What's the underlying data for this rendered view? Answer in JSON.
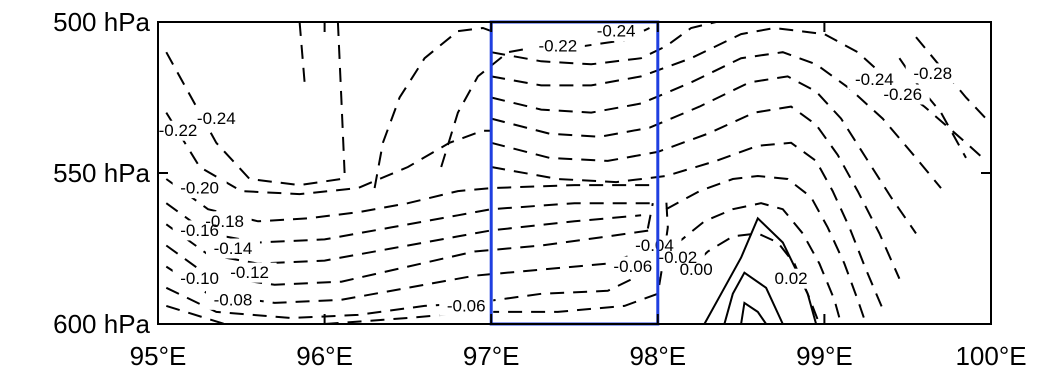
{
  "chart_data": {
    "type": "contour",
    "title": "",
    "xlabel": "",
    "ylabel": "",
    "xlim": [
      95,
      100
    ],
    "ylim": [
      600,
      500
    ],
    "x_ticks": [
      95,
      96,
      97,
      98,
      99,
      100
    ],
    "x_tick_labels": [
      "95°E",
      "96°E",
      "97°E",
      "98°E",
      "99°E",
      "100°E"
    ],
    "y_ticks": [
      500,
      550,
      600
    ],
    "y_tick_labels": [
      "500 hPa",
      "550 hPa",
      "600 hPa"
    ],
    "negative_line_style": "dashed",
    "positive_line_style": "solid",
    "highlight_box": {
      "x": [
        97,
        98
      ],
      "y": [
        500,
        600
      ],
      "color": "#1f3fe0"
    },
    "contour_labels": [
      {
        "text": "-0.24",
        "x": 97.75,
        "y": 503
      },
      {
        "text": "-0.22",
        "x": 97.4,
        "y": 508
      },
      {
        "text": "-0.24",
        "x": 95.35,
        "y": 532
      },
      {
        "text": "-0.22",
        "x": 95.12,
        "y": 536
      },
      {
        "text": "-0.20",
        "x": 95.25,
        "y": 555
      },
      {
        "text": "-0.18",
        "x": 95.4,
        "y": 566
      },
      {
        "text": "-0.16",
        "x": 95.25,
        "y": 569
      },
      {
        "text": "-0.14",
        "x": 95.45,
        "y": 575
      },
      {
        "text": "-0.12",
        "x": 95.55,
        "y": 583
      },
      {
        "text": "-0.10",
        "x": 95.25,
        "y": 585
      },
      {
        "text": "-0.08",
        "x": 95.45,
        "y": 592
      },
      {
        "text": "-0.06",
        "x": 96.85,
        "y": 594
      },
      {
        "text": "-0.06",
        "x": 97.85,
        "y": 581
      },
      {
        "text": "-0.04",
        "x": 97.98,
        "y": 574
      },
      {
        "text": "-0.02",
        "x": 98.12,
        "y": 578
      },
      {
        "text": "0.00",
        "x": 98.23,
        "y": 582
      },
      {
        "text": "0.02",
        "x": 98.8,
        "y": 585
      },
      {
        "text": "-0.24",
        "x": 99.3,
        "y": 519
      },
      {
        "text": "-0.26",
        "x": 99.47,
        "y": 524
      },
      {
        "text": "-0.28",
        "x": 99.65,
        "y": 517
      }
    ],
    "contour_lines": [
      {
        "style": "dashed",
        "points": [
          [
            95.05,
            510
          ],
          [
            95.2,
            525
          ],
          [
            95.35,
            540
          ],
          [
            95.55,
            552
          ],
          [
            95.85,
            554
          ],
          [
            96.1,
            552
          ]
        ]
      },
      {
        "style": "dashed",
        "points": [
          [
            95.05,
            530
          ],
          [
            95.25,
            548
          ],
          [
            95.5,
            556
          ],
          [
            95.85,
            557
          ],
          [
            96.2,
            555
          ],
          [
            96.5,
            548
          ],
          [
            96.75,
            540
          ],
          [
            96.95,
            536
          ],
          [
            97.0,
            536
          ]
        ]
      },
      {
        "style": "dashed",
        "points": [
          [
            95.05,
            552
          ],
          [
            95.3,
            562
          ],
          [
            95.6,
            566
          ],
          [
            95.9,
            565
          ],
          [
            96.2,
            563
          ],
          [
            96.5,
            560
          ],
          [
            96.8,
            556
          ],
          [
            97.0,
            555
          ],
          [
            97.5,
            554
          ],
          [
            98.0,
            554
          ]
        ]
      },
      {
        "style": "dashed",
        "points": [
          [
            95.05,
            560
          ],
          [
            95.3,
            570
          ],
          [
            95.6,
            573
          ],
          [
            96.0,
            572
          ],
          [
            96.4,
            568
          ],
          [
            96.8,
            564
          ],
          [
            97.0,
            562
          ],
          [
            97.5,
            560
          ],
          [
            98.0,
            560
          ]
        ]
      },
      {
        "style": "dashed",
        "points": [
          [
            95.05,
            567
          ],
          [
            95.3,
            577
          ],
          [
            95.6,
            580
          ],
          [
            96.0,
            579
          ],
          [
            96.4,
            575
          ],
          [
            96.8,
            571
          ],
          [
            97.0,
            569
          ],
          [
            97.5,
            566
          ],
          [
            97.9,
            564
          ]
        ]
      },
      {
        "style": "dashed",
        "points": [
          [
            95.05,
            574
          ],
          [
            95.3,
            584
          ],
          [
            95.7,
            587
          ],
          [
            96.1,
            586
          ],
          [
            96.5,
            581
          ],
          [
            96.9,
            576
          ],
          [
            97.3,
            574
          ],
          [
            97.7,
            571
          ],
          [
            97.95,
            569
          ]
        ]
      },
      {
        "style": "dashed",
        "points": [
          [
            95.05,
            581
          ],
          [
            95.3,
            590
          ],
          [
            95.7,
            593
          ],
          [
            96.1,
            592
          ],
          [
            96.5,
            588
          ],
          [
            96.9,
            584
          ],
          [
            97.3,
            582
          ],
          [
            97.7,
            580
          ],
          [
            97.95,
            575
          ]
        ]
      },
      {
        "style": "dashed",
        "points": [
          [
            95.05,
            588
          ],
          [
            95.35,
            596
          ],
          [
            95.8,
            598
          ],
          [
            96.2,
            597
          ],
          [
            96.6,
            594
          ],
          [
            96.9,
            593
          ],
          [
            97.3,
            590
          ],
          [
            97.7,
            589
          ],
          [
            97.85,
            585
          ],
          [
            97.92,
            574
          ],
          [
            97.97,
            560
          ]
        ]
      },
      {
        "style": "dashed",
        "points": [
          [
            95.05,
            594
          ],
          [
            95.4,
            600
          ],
          [
            96.0,
            600
          ]
        ]
      },
      {
        "style": "dashed",
        "points": [
          [
            96.0,
            600
          ],
          [
            96.5,
            598
          ],
          [
            96.9,
            596
          ],
          [
            97.4,
            596
          ],
          [
            97.8,
            594
          ],
          [
            98.0,
            590
          ],
          [
            98.03,
            580
          ],
          [
            98.06,
            568
          ],
          [
            98.05,
            558
          ]
        ]
      },
      {
        "style": "dashed",
        "points": [
          [
            95.85,
            500
          ],
          [
            95.88,
            520
          ]
        ]
      },
      {
        "style": "dashed",
        "points": [
          [
            96.08,
            500
          ],
          [
            96.1,
            525
          ],
          [
            96.12,
            550
          ]
        ]
      },
      {
        "style": "dashed",
        "points": [
          [
            96.3,
            555
          ],
          [
            96.35,
            540
          ],
          [
            96.45,
            525
          ],
          [
            96.6,
            512
          ],
          [
            96.8,
            503
          ],
          [
            96.95,
            502
          ],
          [
            97.0,
            503
          ]
        ]
      },
      {
        "style": "dashed",
        "points": [
          [
            96.7,
            548
          ],
          [
            96.8,
            530
          ],
          [
            96.92,
            518
          ],
          [
            97.1,
            510
          ],
          [
            97.3,
            508
          ],
          [
            97.55,
            508
          ],
          [
            97.8,
            506
          ],
          [
            97.95,
            502
          ]
        ]
      },
      {
        "style": "dashed",
        "points": [
          [
            97.0,
            510
          ],
          [
            97.3,
            513
          ],
          [
            97.6,
            514
          ],
          [
            97.9,
            512
          ],
          [
            98.05,
            508
          ],
          [
            98.2,
            502
          ],
          [
            98.35,
            500
          ]
        ]
      },
      {
        "style": "dashed",
        "points": [
          [
            97.0,
            518
          ],
          [
            97.3,
            521
          ],
          [
            97.6,
            521
          ],
          [
            97.9,
            518
          ],
          [
            98.2,
            512
          ],
          [
            98.5,
            504
          ],
          [
            98.7,
            502
          ],
          [
            99.0,
            504
          ],
          [
            99.2,
            510
          ],
          [
            99.4,
            520
          ],
          [
            99.6,
            528
          ],
          [
            99.85,
            540
          ],
          [
            99.95,
            545
          ]
        ]
      },
      {
        "style": "dashed",
        "points": [
          [
            97.0,
            525
          ],
          [
            97.3,
            529
          ],
          [
            97.6,
            530
          ],
          [
            97.9,
            527
          ],
          [
            98.2,
            520
          ],
          [
            98.5,
            512
          ],
          [
            98.75,
            510
          ],
          [
            98.95,
            514
          ],
          [
            99.15,
            522
          ],
          [
            99.35,
            532
          ],
          [
            99.55,
            545
          ],
          [
            99.7,
            555
          ]
        ]
      },
      {
        "style": "dashed",
        "points": [
          [
            97.0,
            532
          ],
          [
            97.35,
            537
          ],
          [
            97.65,
            538
          ],
          [
            97.95,
            535
          ],
          [
            98.25,
            528
          ],
          [
            98.55,
            520
          ],
          [
            98.78,
            518
          ],
          [
            98.95,
            523
          ],
          [
            99.1,
            532
          ],
          [
            99.25,
            545
          ],
          [
            99.4,
            558
          ],
          [
            99.55,
            570
          ]
        ]
      },
      {
        "style": "dashed",
        "points": [
          [
            97.0,
            540
          ],
          [
            97.35,
            545
          ],
          [
            97.7,
            546
          ],
          [
            98.0,
            543
          ],
          [
            98.3,
            537
          ],
          [
            98.58,
            530
          ],
          [
            98.8,
            528
          ],
          [
            98.95,
            534
          ],
          [
            99.08,
            544
          ],
          [
            99.2,
            556
          ],
          [
            99.33,
            570
          ],
          [
            99.45,
            585
          ]
        ]
      },
      {
        "style": "dashed",
        "points": [
          [
            97.0,
            548
          ],
          [
            97.4,
            552
          ],
          [
            97.75,
            553
          ],
          [
            98.05,
            551
          ],
          [
            98.35,
            546
          ],
          [
            98.6,
            541
          ],
          [
            98.8,
            540
          ],
          [
            98.95,
            546
          ],
          [
            99.05,
            556
          ],
          [
            99.15,
            568
          ],
          [
            99.25,
            582
          ],
          [
            99.35,
            595
          ]
        ]
      },
      {
        "style": "dashed",
        "points": [
          [
            98.05,
            562
          ],
          [
            98.25,
            556
          ],
          [
            98.45,
            552
          ],
          [
            98.6,
            551
          ],
          [
            98.78,
            552
          ],
          [
            98.92,
            558
          ],
          [
            99.02,
            568
          ],
          [
            99.12,
            580
          ],
          [
            99.2,
            592
          ],
          [
            99.25,
            600
          ]
        ]
      },
      {
        "style": "dashed",
        "points": [
          [
            98.1,
            574
          ],
          [
            98.28,
            566
          ],
          [
            98.45,
            562
          ],
          [
            98.62,
            560
          ],
          [
            98.75,
            562
          ],
          [
            98.87,
            570
          ],
          [
            98.97,
            580
          ],
          [
            99.06,
            592
          ],
          [
            99.1,
            600
          ]
        ]
      },
      {
        "style": "dashed",
        "points": [
          [
            98.15,
            584
          ],
          [
            98.3,
            576
          ],
          [
            98.45,
            571
          ],
          [
            98.6,
            570
          ],
          [
            98.72,
            573
          ],
          [
            98.82,
            580
          ],
          [
            98.9,
            590
          ],
          [
            98.97,
            600
          ]
        ]
      },
      {
        "style": "solid",
        "points": [
          [
            98.28,
            600
          ],
          [
            98.38,
            590
          ],
          [
            98.5,
            578
          ],
          [
            98.6,
            565
          ],
          [
            98.75,
            573
          ],
          [
            98.9,
            590
          ],
          [
            98.95,
            600
          ]
        ]
      },
      {
        "style": "solid",
        "points": [
          [
            98.4,
            600
          ],
          [
            98.45,
            590
          ],
          [
            98.52,
            583
          ],
          [
            98.65,
            588
          ],
          [
            98.75,
            600
          ]
        ]
      },
      {
        "style": "solid",
        "points": [
          [
            98.5,
            600
          ],
          [
            98.52,
            593
          ],
          [
            98.6,
            596
          ],
          [
            98.65,
            600
          ]
        ]
      },
      {
        "style": "dashed",
        "points": [
          [
            99.45,
            512
          ],
          [
            99.55,
            520
          ],
          [
            99.7,
            530
          ],
          [
            99.85,
            545
          ]
        ]
      },
      {
        "style": "dashed",
        "points": [
          [
            99.55,
            505
          ],
          [
            99.7,
            515
          ],
          [
            99.85,
            525
          ],
          [
            99.97,
            532
          ]
        ]
      }
    ]
  }
}
